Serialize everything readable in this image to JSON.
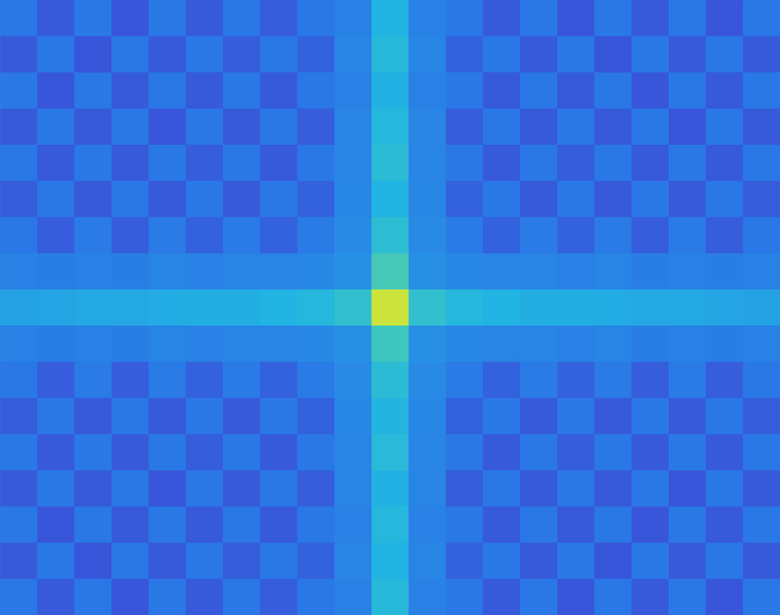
{
  "chart_data": {
    "type": "heatmap",
    "x": [
      20.7,
      62.0,
      103.3,
      144.7,
      186.0,
      227.3,
      268.7,
      310.0,
      351.3,
      392.7,
      434.0,
      475.3,
      516.7,
      558.0,
      599.3,
      640.7,
      682.0,
      723.3,
      764.7,
      806.0,
      847.3
    ],
    "y": [
      20.1,
      60.4,
      100.6,
      140.8,
      181.1,
      221.3,
      261.5,
      301.8,
      342.0,
      382.2,
      422.5,
      462.7,
      502.9,
      543.2,
      583.4,
      623.6,
      663.9
    ],
    "values": [
      [
        0.3,
        0.22,
        0.3,
        0.21,
        0.3,
        0.22,
        0.3,
        0.23,
        0.3,
        0.33,
        0.5,
        0.33,
        0.3,
        0.22,
        0.3,
        0.21,
        0.3,
        0.22,
        0.3,
        0.21,
        0.3
      ],
      [
        0.22,
        0.3,
        0.21,
        0.3,
        0.22,
        0.3,
        0.23,
        0.3,
        0.24,
        0.34,
        0.53,
        0.34,
        0.24,
        0.3,
        0.22,
        0.3,
        0.21,
        0.3,
        0.22,
        0.3,
        0.22
      ],
      [
        0.3,
        0.21,
        0.3,
        0.22,
        0.3,
        0.22,
        0.3,
        0.22,
        0.3,
        0.33,
        0.49,
        0.33,
        0.3,
        0.22,
        0.3,
        0.22,
        0.3,
        0.21,
        0.3,
        0.22,
        0.3
      ],
      [
        0.22,
        0.3,
        0.22,
        0.3,
        0.21,
        0.3,
        0.22,
        0.3,
        0.23,
        0.34,
        0.52,
        0.34,
        0.23,
        0.3,
        0.22,
        0.3,
        0.22,
        0.3,
        0.21,
        0.3,
        0.22
      ],
      [
        0.3,
        0.22,
        0.3,
        0.22,
        0.3,
        0.23,
        0.3,
        0.22,
        0.3,
        0.34,
        0.55,
        0.34,
        0.3,
        0.22,
        0.3,
        0.23,
        0.3,
        0.22,
        0.3,
        0.22,
        0.3
      ],
      [
        0.23,
        0.3,
        0.22,
        0.3,
        0.22,
        0.3,
        0.22,
        0.3,
        0.24,
        0.35,
        0.5,
        0.35,
        0.24,
        0.3,
        0.22,
        0.3,
        0.22,
        0.3,
        0.22,
        0.3,
        0.23
      ],
      [
        0.3,
        0.23,
        0.31,
        0.23,
        0.31,
        0.24,
        0.31,
        0.24,
        0.31,
        0.36,
        0.56,
        0.36,
        0.31,
        0.24,
        0.31,
        0.24,
        0.31,
        0.23,
        0.31,
        0.23,
        0.3
      ],
      [
        0.33,
        0.32,
        0.33,
        0.32,
        0.34,
        0.33,
        0.34,
        0.34,
        0.35,
        0.38,
        0.66,
        0.38,
        0.35,
        0.34,
        0.34,
        0.33,
        0.34,
        0.32,
        0.33,
        0.32,
        0.33
      ],
      [
        0.44,
        0.45,
        0.46,
        0.46,
        0.47,
        0.48,
        0.48,
        0.5,
        0.52,
        0.58,
        0.9,
        0.58,
        0.52,
        0.5,
        0.48,
        0.48,
        0.47,
        0.46,
        0.46,
        0.45,
        0.44
      ],
      [
        0.33,
        0.32,
        0.33,
        0.32,
        0.34,
        0.33,
        0.34,
        0.34,
        0.35,
        0.38,
        0.64,
        0.38,
        0.35,
        0.34,
        0.34,
        0.33,
        0.34,
        0.32,
        0.33,
        0.32,
        0.33
      ],
      [
        0.3,
        0.23,
        0.31,
        0.23,
        0.31,
        0.24,
        0.31,
        0.24,
        0.31,
        0.36,
        0.55,
        0.36,
        0.31,
        0.24,
        0.31,
        0.24,
        0.31,
        0.23,
        0.31,
        0.23,
        0.3
      ],
      [
        0.23,
        0.3,
        0.22,
        0.3,
        0.22,
        0.3,
        0.22,
        0.3,
        0.24,
        0.35,
        0.51,
        0.35,
        0.24,
        0.3,
        0.22,
        0.3,
        0.22,
        0.3,
        0.22,
        0.3,
        0.23
      ],
      [
        0.3,
        0.22,
        0.3,
        0.22,
        0.3,
        0.23,
        0.3,
        0.22,
        0.3,
        0.34,
        0.54,
        0.34,
        0.3,
        0.22,
        0.3,
        0.23,
        0.3,
        0.22,
        0.3,
        0.22,
        0.3
      ],
      [
        0.22,
        0.3,
        0.22,
        0.3,
        0.21,
        0.3,
        0.22,
        0.3,
        0.23,
        0.34,
        0.49,
        0.34,
        0.23,
        0.3,
        0.22,
        0.3,
        0.22,
        0.3,
        0.21,
        0.3,
        0.22
      ],
      [
        0.3,
        0.21,
        0.3,
        0.22,
        0.3,
        0.22,
        0.3,
        0.22,
        0.3,
        0.33,
        0.52,
        0.33,
        0.3,
        0.22,
        0.3,
        0.22,
        0.3,
        0.21,
        0.3,
        0.22,
        0.3
      ],
      [
        0.22,
        0.3,
        0.21,
        0.3,
        0.22,
        0.3,
        0.23,
        0.3,
        0.24,
        0.34,
        0.5,
        0.34,
        0.24,
        0.3,
        0.22,
        0.3,
        0.21,
        0.3,
        0.22,
        0.3,
        0.22
      ],
      [
        0.3,
        0.22,
        0.3,
        0.21,
        0.3,
        0.22,
        0.3,
        0.23,
        0.3,
        0.33,
        0.53,
        0.33,
        0.3,
        0.22,
        0.3,
        0.21,
        0.3,
        0.22,
        0.3,
        0.21,
        0.3
      ]
    ],
    "color_range": [
      0,
      1
    ],
    "xlim": [
      0,
      868
    ],
    "xticks": [
      133,
      270,
      406,
      542,
      678,
      814
    ],
    "ylim": [
      0,
      684
    ],
    "yticks": [
      83,
      168,
      254,
      340,
      425,
      511,
      597
    ],
    "tick_labels": false
  }
}
